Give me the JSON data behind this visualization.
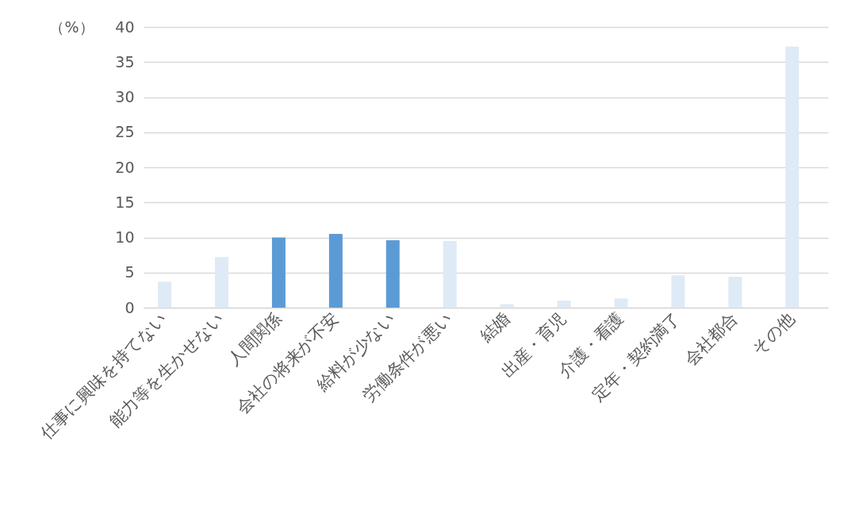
{
  "chart_data": {
    "type": "bar",
    "ylabel": "（%）",
    "categories": [
      "仕事に興味を持てない",
      "能力等を生かせない",
      "人間関係",
      "会社の将来が不安",
      "給料が少ない",
      "労働条件が悪い",
      "結婚",
      "出産・育児",
      "介護・看護",
      "定年・契約満了",
      "会社都合",
      "その他"
    ],
    "values": [
      3.7,
      7.2,
      10.0,
      10.5,
      9.6,
      9.5,
      0.5,
      1.0,
      1.3,
      4.6,
      4.4,
      37.2
    ],
    "colors": [
      "#deeaf6",
      "#deeaf6",
      "#5b9bd5",
      "#5b9bd5",
      "#5b9bd5",
      "#deeaf6",
      "#deeaf6",
      "#deeaf6",
      "#deeaf6",
      "#deeaf6",
      "#deeaf6",
      "#deeaf6"
    ],
    "ylim": [
      0,
      40
    ],
    "yticks": [
      0,
      5,
      10,
      15,
      20,
      25,
      30,
      35,
      40
    ],
    "grid": "y"
  }
}
